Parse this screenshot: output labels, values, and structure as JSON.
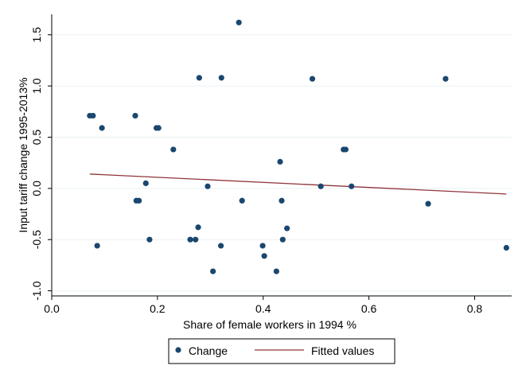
{
  "chart_data": {
    "type": "scatter",
    "title": "",
    "xlabel": "Share of female workers in 1994 %",
    "ylabel": "Input tariff change 1995-2013%",
    "xlim": [
      0.0,
      0.87
    ],
    "ylim": [
      -1.05,
      1.7
    ],
    "xticks": [
      0.0,
      0.2,
      0.4,
      0.6,
      0.8
    ],
    "xtick_labels": [
      "0.0",
      "0.2",
      "0.4",
      "0.6",
      "0.8"
    ],
    "yticks": [
      -1.0,
      -0.5,
      0.0,
      0.5,
      1.0,
      1.5
    ],
    "ytick_labels": [
      "-1.0",
      "-0.5",
      "0.0",
      "0.5",
      "1.0",
      "1.5"
    ],
    "grid": true,
    "legend_position": "bottom",
    "colors": {
      "points": "#1a476f",
      "fit": "#90353b",
      "grid": "#eaf2f3"
    },
    "series": [
      {
        "name": "Change",
        "kind": "scatter",
        "x": [
          0.072,
          0.078,
          0.086,
          0.095,
          0.158,
          0.16,
          0.165,
          0.178,
          0.185,
          0.198,
          0.202,
          0.23,
          0.262,
          0.272,
          0.277,
          0.279,
          0.295,
          0.305,
          0.32,
          0.321,
          0.354,
          0.36,
          0.399,
          0.402,
          0.425,
          0.432,
          0.435,
          0.437,
          0.445,
          0.493,
          0.509,
          0.552,
          0.556,
          0.567,
          0.712,
          0.745,
          0.86
        ],
        "y": [
          0.71,
          0.71,
          -0.56,
          0.59,
          0.71,
          -0.12,
          -0.12,
          0.05,
          -0.5,
          0.59,
          0.59,
          0.38,
          -0.5,
          -0.5,
          -0.38,
          1.08,
          0.02,
          -0.81,
          -0.56,
          1.08,
          1.62,
          -0.12,
          -0.56,
          -0.66,
          -0.81,
          0.26,
          -0.12,
          -0.5,
          -0.39,
          1.07,
          0.02,
          0.38,
          0.38,
          0.02,
          -0.15,
          1.07,
          -0.58
        ]
      },
      {
        "name": "Fitted values",
        "kind": "line",
        "x": [
          0.072,
          0.86
        ],
        "y": [
          0.14,
          -0.055
        ]
      }
    ]
  }
}
